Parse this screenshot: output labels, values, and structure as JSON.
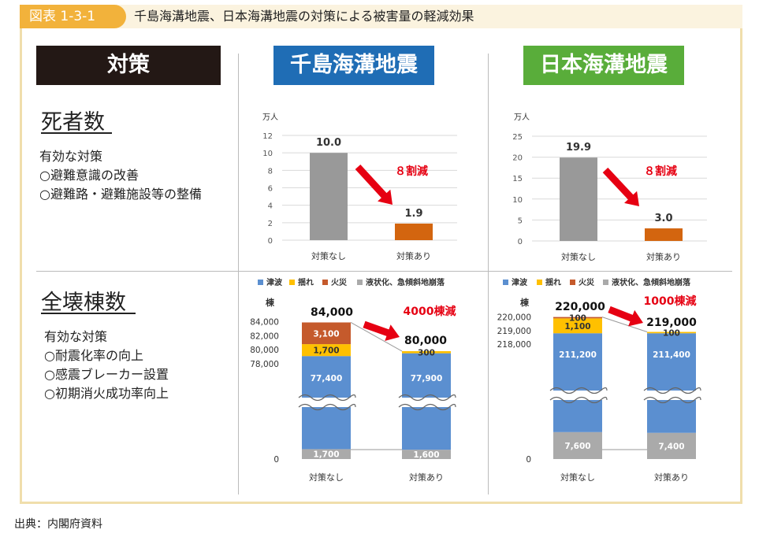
{
  "figure": {
    "number": "図表 1-3-1",
    "title": "千島海溝地震、日本海溝地震の対策による被害量の軽減効果",
    "source": "出典：内閣府資料"
  },
  "headers": {
    "measures": "対策",
    "chishima": "千島海溝地震",
    "nihon": "日本海溝地震"
  },
  "colors": {
    "header_black": "#231815",
    "header_blue": "#1f6db5",
    "header_green": "#59ad3a",
    "gray_bar": "#999999",
    "orange_bar": "#d3650f",
    "tsunami": "#5b8fd0",
    "shaking": "#ffc000",
    "fire": "#c55a2c",
    "liquefaction": "#aaaaaa",
    "arrow_red": "#e60012"
  },
  "sections": {
    "deaths": {
      "title": "死者数",
      "measures_label": "有効な対策",
      "measures": [
        "○避難意識の改善",
        "○避難路・避難施設等の整備"
      ]
    },
    "buildings": {
      "title": "全壊棟数",
      "measures_label": "有効な対策",
      "measures": [
        "○耐震化率の向上",
        "○感震ブレーカー設置",
        "○初期消火成功率向上"
      ]
    }
  },
  "chart_data": [
    {
      "type": "bar",
      "panel": "千島海溝地震 死者数",
      "unit": "万人",
      "categories": [
        "対策なし",
        "対策あり"
      ],
      "values": [
        10.0,
        1.9
      ],
      "value_labels": [
        "10.0",
        "1.9"
      ],
      "ylim": [
        0,
        12
      ],
      "yticks": [
        0,
        2,
        4,
        6,
        8,
        10,
        12
      ],
      "annotation": "８割減"
    },
    {
      "type": "bar",
      "panel": "日本海溝地震 死者数",
      "unit": "万人",
      "categories": [
        "対策なし",
        "対策あり"
      ],
      "values": [
        19.9,
        3.0
      ],
      "value_labels": [
        "19.9",
        "3.0"
      ],
      "ylim": [
        0,
        25
      ],
      "yticks": [
        0,
        5,
        10,
        15,
        20,
        25
      ],
      "annotation": "８割減"
    },
    {
      "type": "bar",
      "stacked": true,
      "axis_break": true,
      "panel": "千島海溝地震 全壊棟数",
      "unit": "棟",
      "legend": [
        "津波",
        "揺れ",
        "火災",
        "液状化、急傾斜地崩落"
      ],
      "categories": [
        "対策なし",
        "対策あり"
      ],
      "series": [
        {
          "name": "液状化、急傾斜地崩落",
          "values": [
            1700,
            1600
          ],
          "labels": [
            "1,700",
            "1,600"
          ]
        },
        {
          "name": "津波",
          "values": [
            77400,
            77900
          ],
          "labels": [
            "77,400",
            "77,900"
          ]
        },
        {
          "name": "揺れ",
          "values": [
            1700,
            300
          ],
          "labels": [
            "1,700",
            "300"
          ]
        },
        {
          "name": "火災",
          "values": [
            3100,
            0
          ],
          "labels": [
            "3,100",
            ""
          ]
        }
      ],
      "totals": [
        84000,
        80000
      ],
      "total_labels": [
        "84,000",
        "80,000"
      ],
      "yticks": [
        "0",
        "78,000",
        "80,000",
        "82,000",
        "84,000"
      ],
      "annotation": "4000棟減"
    },
    {
      "type": "bar",
      "stacked": true,
      "axis_break": true,
      "panel": "日本海溝地震 全壊棟数",
      "unit": "棟",
      "legend": [
        "津波",
        "揺れ",
        "火災",
        "液状化、急傾斜地崩落"
      ],
      "categories": [
        "対策なし",
        "対策あり"
      ],
      "series": [
        {
          "name": "液状化、急傾斜地崩落",
          "values": [
            7600,
            7400
          ],
          "labels": [
            "7,600",
            "7,400"
          ]
        },
        {
          "name": "津波",
          "values": [
            211200,
            211400
          ],
          "labels": [
            "211,200",
            "211,400"
          ]
        },
        {
          "name": "揺れ",
          "values": [
            1100,
            100
          ],
          "labels": [
            "1,100",
            "100"
          ]
        },
        {
          "name": "火災",
          "values": [
            100,
            0
          ],
          "labels": [
            "100",
            ""
          ]
        }
      ],
      "totals": [
        220000,
        219000
      ],
      "total_labels": [
        "220,000",
        "219,000"
      ],
      "yticks": [
        "0",
        "218,000",
        "219,000",
        "220,000"
      ],
      "annotation": "1000棟減"
    }
  ]
}
